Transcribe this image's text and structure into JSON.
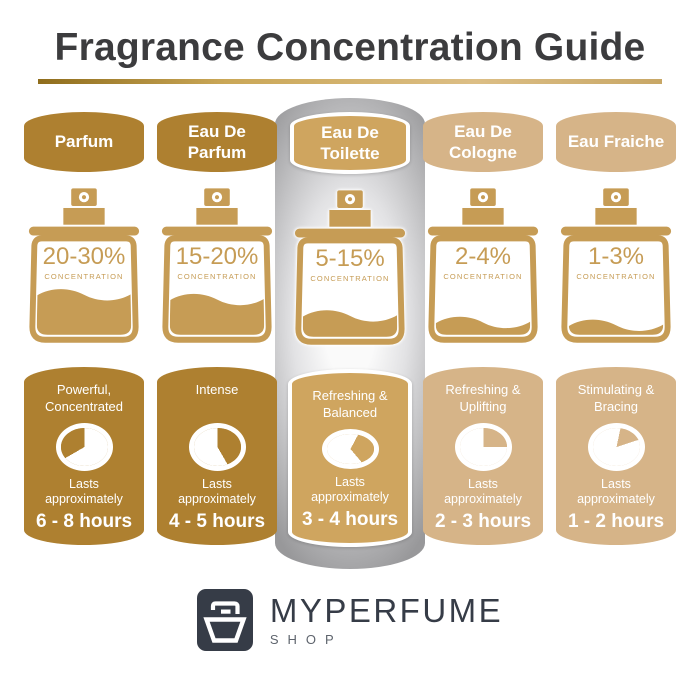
{
  "title": "Fragrance Concentration Guide",
  "concentration_label": "CONCENTRATION",
  "colors": {
    "dark_gold": "#AE8030",
    "mid_gold": "#CFA55F",
    "light_tan": "#D6B488",
    "bottle_gold": "#C69C55",
    "title_text": "#3C3C3E",
    "underline_from": "#8F6D1C",
    "underline_to": "#DCBE85",
    "highlight_gray": "#A2A2A4",
    "logo_dark": "#363C47",
    "logo_sub": "#5E646D"
  },
  "columns": [
    {
      "name": "Parfum",
      "concentration": "20-30%",
      "character": "Powerful,\nConcentrated",
      "lasts": "Lasts\napproximately",
      "duration": "6 - 8 hours",
      "fill_percent": 43,
      "clock_wedge": [
        240,
        360
      ],
      "theme": "dark_gold",
      "highlighted": false
    },
    {
      "name": "Eau De Parfum",
      "concentration": "15-20%",
      "character": "Intense",
      "lasts": "Lasts\napproximately",
      "duration": "4 - 5 hours",
      "fill_percent": 38,
      "clock_wedge": [
        0,
        150
      ],
      "theme": "dark_gold",
      "highlighted": false
    },
    {
      "name": "Eau De Toilette",
      "concentration": "5-15%",
      "character": "Refreshing &\nBalanced",
      "lasts": "Lasts\napproximately",
      "duration": "3 - 4 hours",
      "fill_percent": 23,
      "clock_wedge": [
        28,
        140
      ],
      "theme": "mid_gold",
      "highlighted": true
    },
    {
      "name": "Eau De Cologne",
      "concentration": "2-4%",
      "character": "Refreshing &\nUplifting",
      "lasts": "Lasts\napproximately",
      "duration": "2 - 3 hours",
      "fill_percent": 14,
      "clock_wedge": [
        0,
        90
      ],
      "theme": "light_tan",
      "highlighted": false
    },
    {
      "name": "Eau Fraiche",
      "concentration": "1-3%",
      "character": "Stimulating &\nBracing",
      "lasts": "Lasts\napproximately",
      "duration": "1 - 2 hours",
      "fill_percent": 11,
      "clock_wedge": [
        12,
        72
      ],
      "theme": "light_tan",
      "highlighted": false
    }
  ],
  "logo": {
    "brand": "MYPERFUME",
    "sub": "SHOP"
  }
}
